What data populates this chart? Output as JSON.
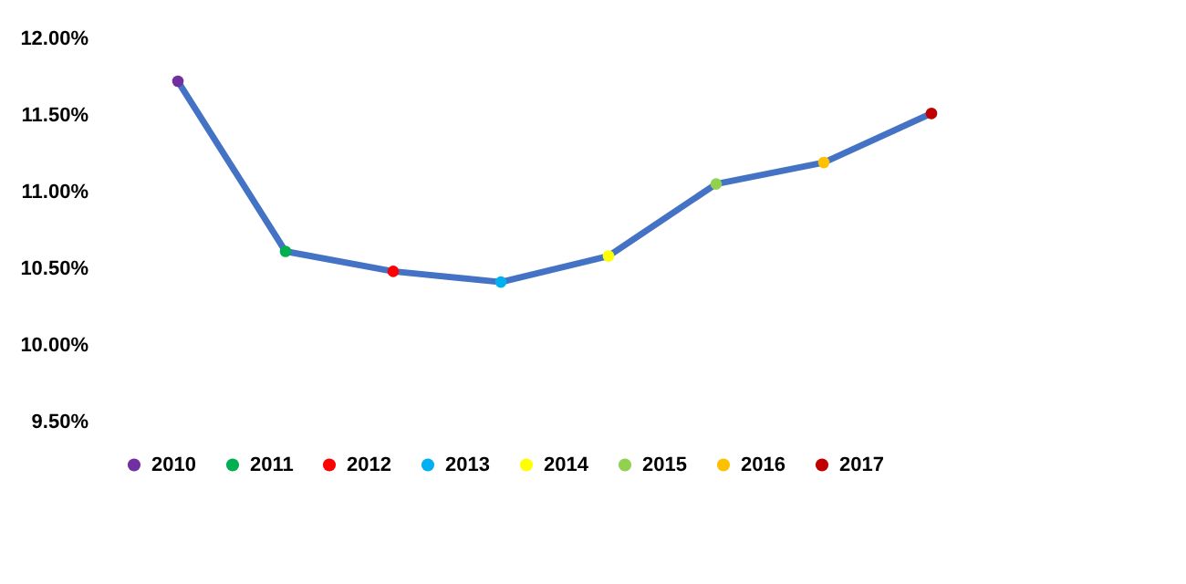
{
  "chart_data": {
    "type": "line",
    "categories": [
      null,
      null,
      null,
      null,
      null,
      null,
      null,
      null
    ],
    "series": [
      {
        "color": "#4472c4",
        "marker": "none",
        "values": [
          11.72,
          10.61,
          10.48,
          10.41,
          10.58,
          11.05,
          11.19,
          11.51
        ]
      },
      {
        "type": "scatter",
        "name": "2010",
        "color": "#7030a0",
        "values": [
          11.72,
          null,
          null,
          null,
          null,
          null,
          null,
          null
        ]
      },
      {
        "type": "scatter",
        "name": "2011",
        "color": "#00b050",
        "values": [
          null,
          10.61,
          null,
          null,
          null,
          null,
          null,
          null
        ]
      },
      {
        "type": "scatter",
        "name": "2012",
        "color": "#ff0000",
        "values": [
          null,
          null,
          10.48,
          null,
          null,
          null,
          null,
          null
        ]
      },
      {
        "type": "scatter",
        "name": "2013",
        "color": "#00b0f0",
        "values": [
          null,
          null,
          null,
          10.41,
          null,
          null,
          null,
          null
        ]
      },
      {
        "type": "scatter",
        "name": "2014",
        "color": "#ffff00",
        "values": [
          null,
          null,
          null,
          null,
          10.58,
          null,
          null,
          null
        ]
      },
      {
        "type": "scatter",
        "name": "2015",
        "color": "#92d050",
        "values": [
          null,
          null,
          null,
          null,
          null,
          11.05,
          null,
          null
        ]
      },
      {
        "type": "scatter",
        "name": "2016",
        "color": "#ffc000",
        "values": [
          null,
          null,
          null,
          null,
          null,
          null,
          11.19,
          null
        ]
      },
      {
        "type": "scatter",
        "name": "2017",
        "color": "#c00000",
        "values": [
          null,
          null,
          null,
          null,
          null,
          null,
          null,
          11.51
        ]
      }
    ],
    "ylim": [
      9.5,
      12
    ],
    "yticks": [
      {
        "value": 9.5,
        "label": "9.50%"
      },
      {
        "value": 10,
        "label": "10.00%"
      },
      {
        "value": 10.5,
        "label": "10.50%"
      },
      {
        "value": 11,
        "label": "11.00%"
      },
      {
        "value": 11.5,
        "label": "11.50%"
      },
      {
        "value": 12,
        "label": "12.00%"
      }
    ],
    "tick_labels": "y",
    "legend": "bottom",
    "marker": "circle",
    "line_style": "solid",
    "grid": false
  }
}
